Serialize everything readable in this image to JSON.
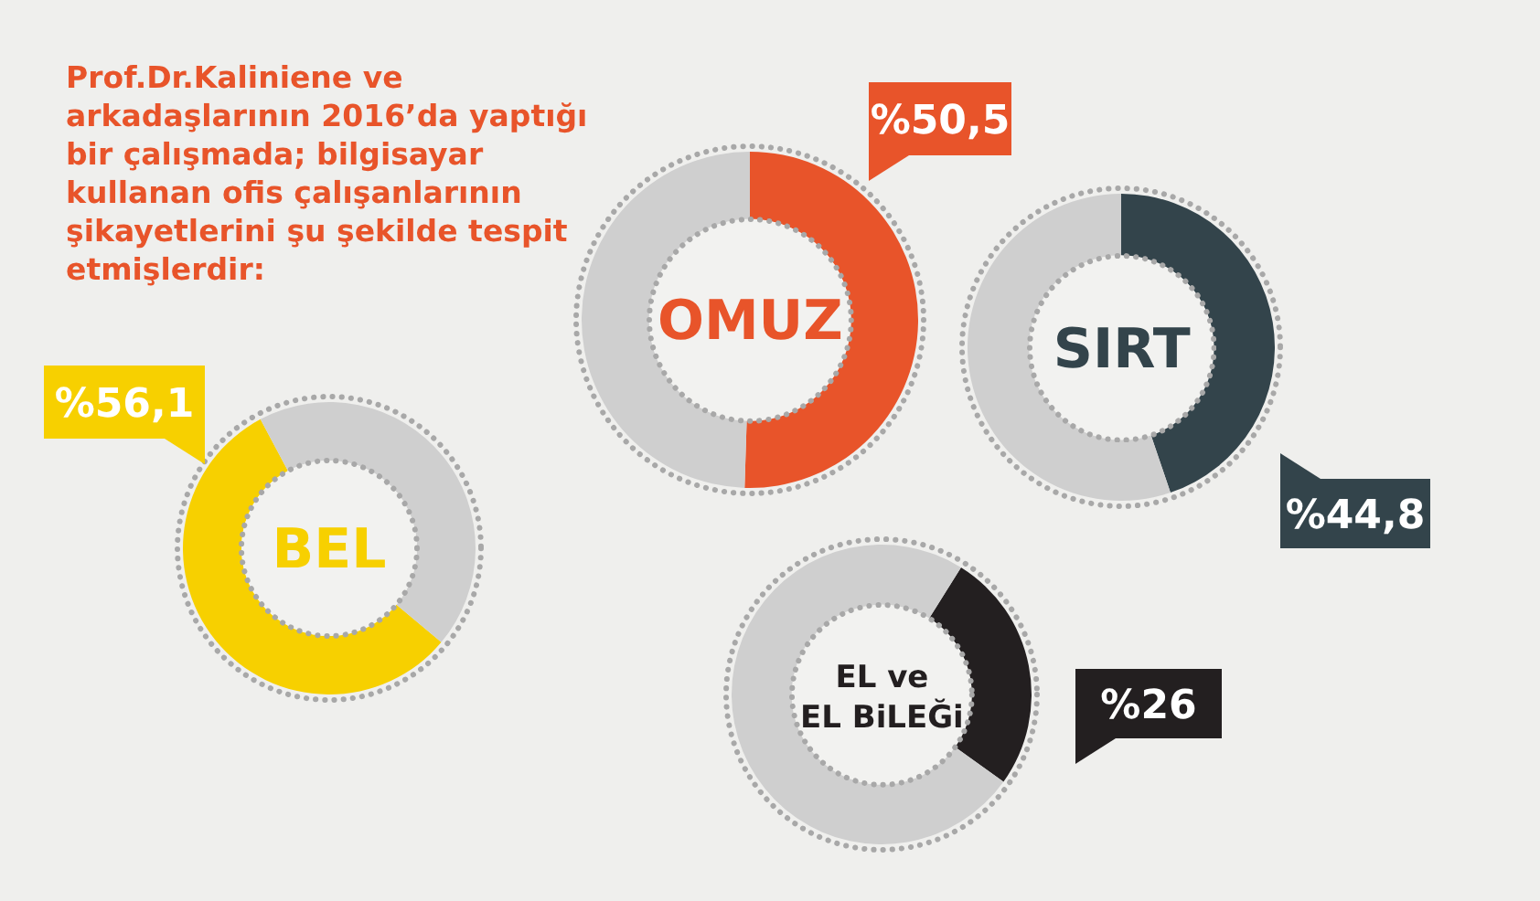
{
  "chart_data": [
    {
      "type": "other",
      "title": "Prof.Dr.Kaliniene ve arkadaşlarının 2016’da yaptığı bir çalışmada; bilgisayar kullanan ofis çalışanlarının şikayetlerini şu şekilde tespit etmişlerdir:"
    },
    {
      "type": "donut",
      "title": "OMUZ",
      "categories": [
        null,
        null
      ],
      "values": [
        50.5,
        49.5
      ],
      "colors": [
        "#e8542a",
        "#cfcfcf"
      ],
      "value_labels": [
        "%50,5",
        null
      ]
    },
    {
      "type": "donut",
      "title": "SIRT",
      "categories": [
        null,
        null
      ],
      "values": [
        44.8,
        55.2
      ],
      "colors": [
        "#33444b",
        "#cfcfcf"
      ],
      "value_labels": [
        "%44,8",
        null
      ]
    },
    {
      "type": "donut",
      "title": "BEL",
      "categories": [
        null,
        null
      ],
      "values": [
        56.1,
        43.9
      ],
      "colors": [
        "#f7d000",
        "#cfcfcf"
      ],
      "value_labels": [
        "%56,1",
        null
      ]
    },
    {
      "type": "donut",
      "title": "EL ve EL BiLEĞi",
      "categories": [
        null,
        null
      ],
      "values": [
        26,
        74
      ],
      "colors": [
        "#231f20",
        "#cfcfcf"
      ],
      "value_labels": [
        "%26",
        null
      ]
    }
  ]
}
